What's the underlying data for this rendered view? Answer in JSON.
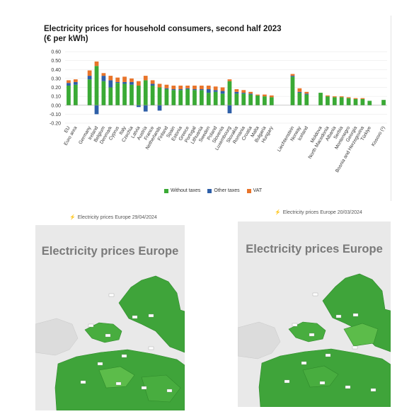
{
  "chart_data": {
    "type": "bar",
    "title": "Electricity prices for household consumers, second half 2023",
    "subtitle": "(€ per kWh)",
    "stacked": true,
    "ylim": [
      -0.2,
      0.6
    ],
    "yticks": [
      "0.60",
      "0.50",
      "0.40",
      "0.30",
      "0.20",
      "0.10",
      "0.00",
      "-0.10",
      "-0.20"
    ],
    "grid": true,
    "legend_position": "bottom",
    "categories": [
      "EU",
      "Euro area",
      "",
      "Germany",
      "Ireland",
      "Belgium",
      "Denmark",
      "Cyprus",
      "Italy",
      "Czechia",
      "Latvia",
      "Austria",
      "France",
      "Netherlands",
      "Finland",
      "Spain",
      "Estonia",
      "Greece",
      "Portugal",
      "Lithuania",
      "Sweden",
      "Poland",
      "Slovenia",
      "Luxembourg",
      "Slovakia",
      "Romania",
      "Croatia",
      "Malta",
      "Bulgaria",
      "Hungary",
      "",
      "",
      "Liechtenstein",
      "Norway",
      "Iceland",
      "",
      "Moldova",
      "North Macedonia",
      "Albania",
      "Serbia",
      "Montenegro",
      "Georgia",
      "Bosnia and Herzegovina",
      "Türkiye",
      "",
      "Kosovo (¹)"
    ],
    "series": [
      {
        "name": "Without taxes",
        "color": "#3aaa35",
        "values": [
          0.22,
          0.23,
          0,
          0.29,
          0.44,
          0.27,
          0.2,
          0.25,
          0.24,
          0.23,
          0.22,
          0.28,
          0.22,
          0.2,
          0.18,
          0.17,
          0.17,
          0.18,
          0.17,
          0.17,
          0.14,
          0.15,
          0.13,
          0.27,
          0.13,
          0.13,
          0.12,
          0.11,
          0.1,
          0.09,
          0,
          0,
          0.32,
          0.14,
          0.12,
          0,
          0.14,
          0.1,
          0.09,
          0.09,
          0.08,
          0.07,
          0.07,
          0.05,
          0,
          0.06
        ]
      },
      {
        "name": "Other taxes",
        "color": "#2e5fa8",
        "values": [
          0.03,
          0.03,
          0,
          0.04,
          -0.1,
          0.06,
          0.08,
          0.01,
          0.02,
          0.03,
          -0.02,
          -0.07,
          0.02,
          -0.06,
          0.01,
          0.01,
          0.01,
          0.01,
          0.01,
          0.01,
          0.04,
          0.02,
          0.03,
          -0.09,
          0.02,
          0.01,
          0.01,
          0,
          0,
          0,
          0,
          0,
          0.01,
          0.01,
          0.01,
          0,
          0,
          0,
          0,
          0,
          0,
          0,
          0,
          0,
          0,
          0
        ]
      },
      {
        "name": "VAT",
        "color": "#e8742a",
        "values": [
          0.03,
          0.03,
          0,
          0.06,
          0.05,
          0.03,
          0.05,
          0.05,
          0.06,
          0.04,
          0.05,
          0.05,
          0.04,
          0.04,
          0.04,
          0.04,
          0.04,
          0.03,
          0.04,
          0.04,
          0.04,
          0.04,
          0.04,
          0.02,
          0.03,
          0.03,
          0.02,
          0.01,
          0.02,
          0.02,
          0,
          0,
          0.02,
          0.04,
          0.02,
          0,
          0,
          0.01,
          0.01,
          0.01,
          0.01,
          0.01,
          0.01,
          0,
          0,
          0
        ]
      }
    ]
  },
  "maps": [
    {
      "caption": "Electricity prices Europe 29/04/2024",
      "heading": "Electricity prices Europe"
    },
    {
      "caption": "Electricity prices Europe 20/03/2024",
      "heading": "Electricity prices Europe"
    }
  ],
  "colors": {
    "map_green": "#3fa43a",
    "map_green_light": "#5cbc4a",
    "map_bg": "#e9e9e9",
    "map_land_gray": "#dcdcdc"
  }
}
